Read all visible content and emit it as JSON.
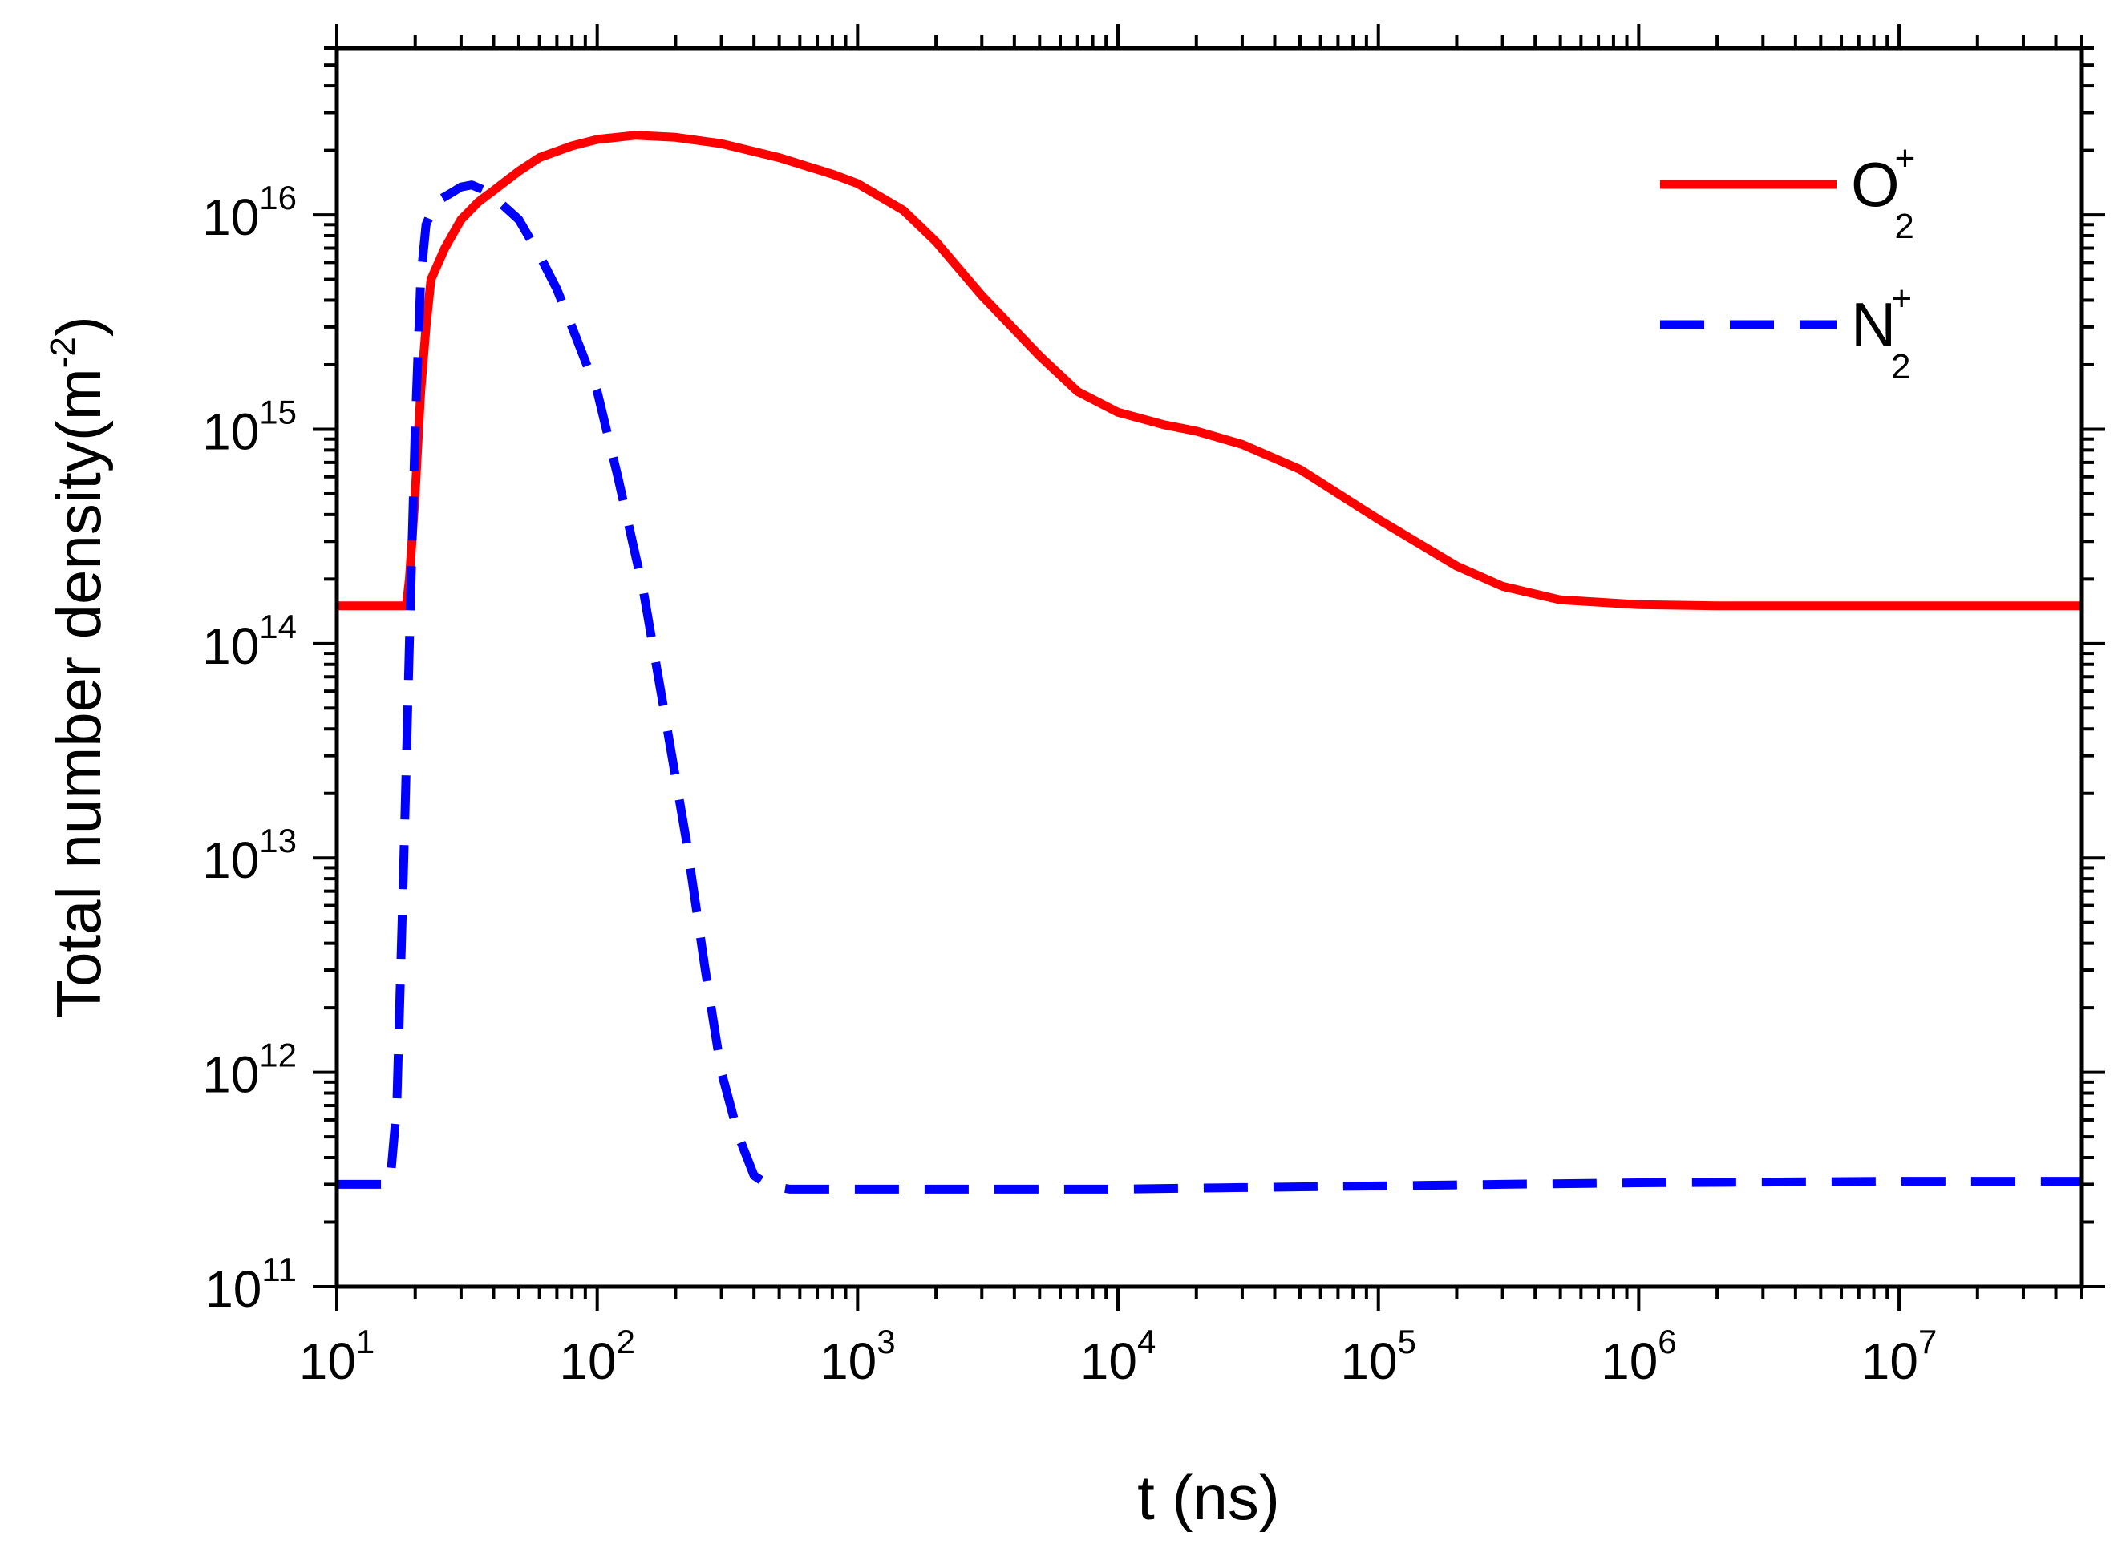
{
  "chart_data": {
    "type": "line",
    "title": "",
    "xlabel": "t (ns)",
    "ylabel_main": "Total number density(m",
    "ylabel_sup": "-2",
    "ylabel_close": ")",
    "xscale": "log",
    "yscale": "log",
    "xlim": [
      10,
      50000000
    ],
    "ylim": [
      100000000000,
      60000000000000000
    ],
    "xticks": [
      {
        "base": "10",
        "exp": "1",
        "value": 10
      },
      {
        "base": "10",
        "exp": "2",
        "value": 100
      },
      {
        "base": "10",
        "exp": "3",
        "value": 1000
      },
      {
        "base": "10",
        "exp": "4",
        "value": 10000
      },
      {
        "base": "10",
        "exp": "5",
        "value": 100000
      },
      {
        "base": "10",
        "exp": "6",
        "value": 1000000
      },
      {
        "base": "10",
        "exp": "7",
        "value": 10000000
      }
    ],
    "yticks": [
      {
        "base": "10",
        "exp": "11",
        "value": 100000000000
      },
      {
        "base": "10",
        "exp": "12",
        "value": 1000000000000
      },
      {
        "base": "10",
        "exp": "13",
        "value": 10000000000000
      },
      {
        "base": "10",
        "exp": "14",
        "value": 100000000000000
      },
      {
        "base": "10",
        "exp": "15",
        "value": 1000000000000000
      },
      {
        "base": "10",
        "exp": "16",
        "value": 10000000000000000
      }
    ],
    "legend_position": "top-right",
    "grid": false,
    "series": [
      {
        "name": "O2+",
        "label_base": "O",
        "label_sub": "2",
        "label_sup": "+",
        "color": "#ff0000",
        "style": "solid",
        "x": [
          10,
          18.5,
          19,
          20,
          21,
          22,
          23,
          26,
          30,
          35,
          40,
          50,
          60,
          80,
          100,
          140,
          200,
          300,
          500,
          800,
          1000,
          1500,
          2000,
          3000,
          5000,
          7000,
          10000,
          15000,
          20000,
          30000,
          50000,
          100000,
          200000,
          300000,
          500000,
          1000000,
          2000000,
          5000000,
          10000000,
          50000000
        ],
        "y": [
          150000000000000.0,
          150000000000000.0,
          200000000000000.0,
          500000000000000.0,
          1500000000000000.0,
          3000000000000000.0,
          5000000000000000.0,
          7000000000000000.0,
          9500000000000000.0,
          1.15e+16,
          1.3e+16,
          1.6e+16,
          1.85e+16,
          2.1e+16,
          2.25e+16,
          2.35e+16,
          2.3e+16,
          2.15e+16,
          1.85e+16,
          1.55e+16,
          1.4e+16,
          1.05e+16,
          7500000000000000.0,
          4200000000000000.0,
          2200000000000000.0,
          1500000000000000.0,
          1200000000000000.0,
          1050000000000000.0,
          980000000000000.0,
          850000000000000.0,
          650000000000000.0,
          380000000000000.0,
          230000000000000.0,
          185000000000000.0,
          160000000000000.0,
          152000000000000.0,
          150000000000000.0,
          150000000000000.0,
          150000000000000.0,
          150000000000000.0
        ]
      },
      {
        "name": "N2+",
        "label_base": "N",
        "label_sub": "2",
        "label_sup": "+",
        "color": "#0000ff",
        "style": "dashed",
        "x": [
          10,
          16,
          17,
          18,
          19,
          20,
          21,
          22,
          24,
          27,
          30,
          33,
          37,
          42,
          50,
          60,
          70,
          80,
          100,
          120,
          150,
          180,
          220,
          260,
          300,
          350,
          400,
          450,
          500,
          550,
          600,
          1000,
          3000,
          10000,
          30000,
          100000,
          300000,
          1000000,
          10000000,
          50000000
        ],
        "y": [
          300000000000.0,
          300000000000.0,
          700000000000.0,
          8000000000000.0,
          100000000000000.0,
          1000000000000000.0,
          5000000000000000.0,
          9000000000000000.0,
          1.15e+16,
          1.25e+16,
          1.35e+16,
          1.38e+16,
          1.3e+16,
          1.15e+16,
          9500000000000000.0,
          6500000000000000.0,
          4500000000000000.0,
          3000000000000000.0,
          1500000000000000.0,
          600000000000000.0,
          180000000000000.0,
          50000000000000.0,
          12000000000000.0,
          3000000000000.0,
          1000000000000.0,
          500000000000.0,
          330000000000.0,
          300000000000.0,
          290000000000.0,
          285000000000.0,
          285000000000.0,
          285000000000.0,
          285000000000.0,
          285000000000.0,
          290000000000.0,
          295000000000.0,
          300000000000.0,
          305000000000.0,
          310000000000.0,
          310000000000.0
        ]
      }
    ]
  }
}
